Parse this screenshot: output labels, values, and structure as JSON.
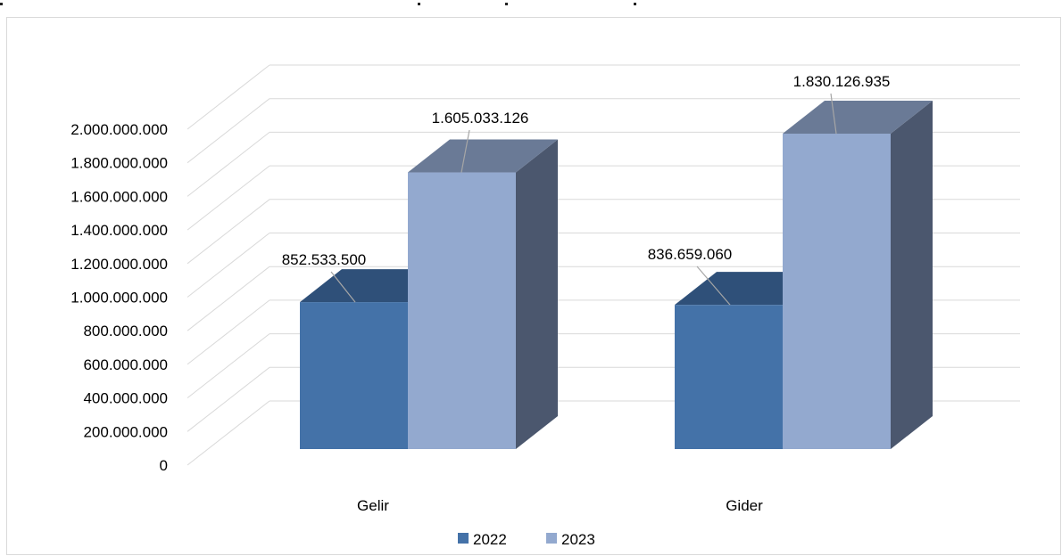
{
  "chart_data": {
    "type": "bar",
    "style": "3d-clustered-column",
    "categories": [
      "Gelir",
      "Gider"
    ],
    "series": [
      {
        "name": "2022",
        "values": [
          852533500,
          836659060
        ],
        "color": "#4472a8",
        "top_color": "#2f5079",
        "side_color": "#2a4a70"
      },
      {
        "name": "2023",
        "values": [
          1605033126,
          1830126935
        ],
        "color": "#93a9cf",
        "top_color": "#6a7a96",
        "side_color": "#4b576e"
      }
    ],
    "data_labels": [
      [
        "852.533.500",
        "836.659.060"
      ],
      [
        "1.605.033.126",
        "1.830.126.935"
      ]
    ],
    "yticks": [
      "0",
      "200.000.000",
      "400.000.000",
      "600.000.000",
      "800.000.000",
      "1.000.000.000",
      "1.200.000.000",
      "1.400.000.000",
      "1.600.000.000",
      "1.800.000.000",
      "2.000.000.000"
    ],
    "ylim": [
      0,
      2000000000
    ],
    "grid": true,
    "legend": "bottom",
    "gridline_color": "#d9d9d9"
  }
}
